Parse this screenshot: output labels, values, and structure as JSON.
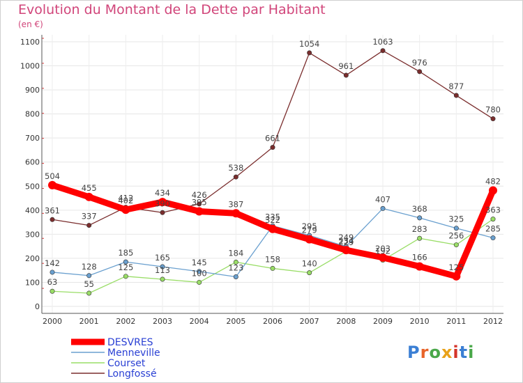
{
  "title": "Evolution du Montant de la Dette par Habitant",
  "unit_label": "(en €)",
  "logo": {
    "text": "Proxiti",
    "colors": [
      "#3b7fd4",
      "#e8642a",
      "#4aa84a",
      "#e8a21a",
      "#d4342a",
      "#3b7fd4",
      "#4aa84a"
    ]
  },
  "chart_data": {
    "type": "line",
    "x": [
      "2000",
      "2001",
      "2002",
      "2003",
      "2004",
      "2005",
      "2006",
      "2007",
      "2008",
      "2009",
      "2010",
      "2011",
      "2012"
    ],
    "ylim": [
      0,
      1100
    ],
    "yticks": [
      0,
      100,
      200,
      300,
      400,
      500,
      600,
      700,
      800,
      900,
      1000,
      1100
    ],
    "grid": true,
    "legend_position": "bottom-left",
    "series": [
      {
        "name": "Longfossé",
        "color": "#7a2d2d",
        "values": [
          361,
          337,
          412,
          390,
          426,
          538,
          661,
          1054,
          961,
          1063,
          976,
          877,
          780
        ],
        "labels": [
          "361",
          "337",
          "412",
          "390",
          "426",
          "538",
          "661",
          "1054",
          "961",
          "1063",
          "976",
          "877",
          "780"
        ]
      },
      {
        "name": "Courset",
        "color": "#99dd66",
        "values": [
          63,
          55,
          125,
          113,
          100,
          184,
          158,
          140,
          229,
          192,
          283,
          256,
          363
        ],
        "labels": [
          "63",
          "55",
          "125",
          "113",
          "100",
          "184",
          "158",
          "140",
          "229",
          "192",
          "283",
          "256",
          "363"
        ]
      },
      {
        "name": "Menneville",
        "color": "#6aa0cf",
        "values": [
          142,
          128,
          185,
          165,
          145,
          123,
          335,
          295,
          249,
          407,
          368,
          325,
          285
        ],
        "labels": [
          "142",
          "128",
          "185",
          "165",
          "145",
          "123",
          "335",
          "295",
          "249",
          "407",
          "368",
          "325",
          "285"
        ]
      },
      {
        "name": "DESVRES",
        "color": "#ff0000",
        "values": [
          504,
          455,
          402,
          434,
          395,
          387,
          322,
          279,
          234,
          203,
          166,
          125,
          482
        ],
        "labels": [
          "504",
          "455",
          "402",
          "434",
          "395",
          "387",
          "322",
          "279",
          "234",
          "203",
          "166",
          "125",
          "482"
        ]
      }
    ]
  }
}
